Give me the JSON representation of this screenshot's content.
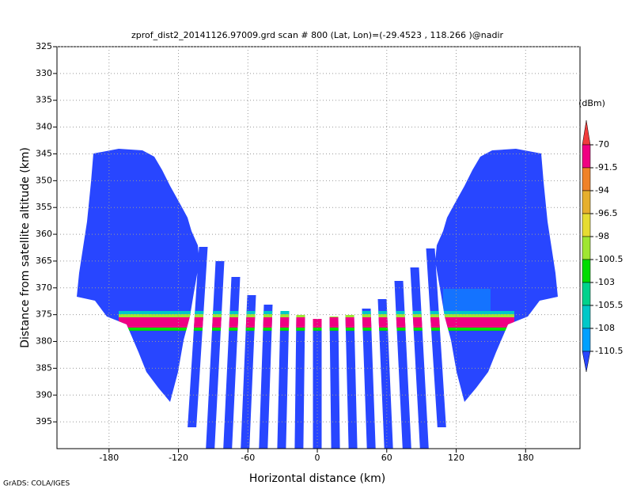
{
  "chart_data": {
    "type": "shaded",
    "title": "zprof_dist2_20141126.97009.grd  scan # 800  (Lat, Lon)=(-29.4523 , 118.266 )@nadir",
    "x_label": "Horizontal distance (km)",
    "y_label": "Distance from satellite altitude (km)",
    "xlim": [
      -225,
      227
    ],
    "xticks": [
      -180,
      -120,
      -60,
      0,
      60,
      120,
      180
    ],
    "ylim": [
      400,
      325
    ],
    "yticks": [
      325,
      330,
      335,
      340,
      345,
      350,
      355,
      360,
      365,
      370,
      375,
      380,
      385,
      390,
      395
    ],
    "grid": true,
    "colorbar": {
      "unit": "(dBm)",
      "levels": [
        -70,
        -91.5,
        -94,
        -96.5,
        -98,
        -100.5,
        -103,
        -105.5,
        -108,
        -110.5
      ],
      "colors": [
        "#f03c3c",
        "#f00082",
        "#f08228",
        "#e6af2d",
        "#e6dc32",
        "#a0e632",
        "#00dc00",
        "#00d28c",
        "#00c8c8",
        "#00a0ff",
        "#2846ff"
      ]
    },
    "footer": "GrADS: COLA/IGES"
  }
}
